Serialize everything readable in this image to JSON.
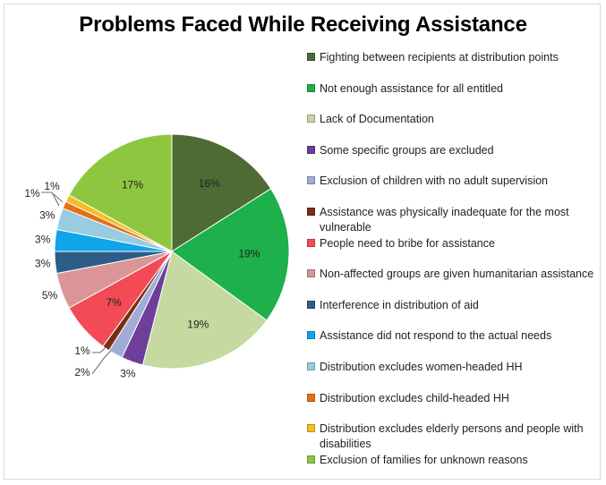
{
  "chart_data": {
    "type": "pie",
    "title": "Problems Faced While Receiving Assistance",
    "slices": [
      {
        "label": "Fighting between recipients at distribution points",
        "value": 16,
        "data_label": "16%",
        "color": "#4e6b33"
      },
      {
        "label": "Not enough assistance for all entitled",
        "value": 19,
        "data_label": "19%",
        "color": "#1db04b"
      },
      {
        "label": "Lack of Documentation",
        "value": 19,
        "data_label": "19%",
        "color": "#c5d9a0"
      },
      {
        "label": "Some specific groups are excluded",
        "value": 3,
        "data_label": "3%",
        "color": "#6e3f9a"
      },
      {
        "label": "Exclusion of children with no adult supervision",
        "value": 2,
        "data_label": "2%",
        "color": "#a3acd6"
      },
      {
        "label": "Assistance was physically inadequate for the most vulnerable",
        "value": 1,
        "data_label": "1%",
        "color": "#7a2e10"
      },
      {
        "label": "People need to bribe for assistance",
        "value": 7,
        "data_label": "7%",
        "color": "#f24b55"
      },
      {
        "label": "Non-affected groups are given humanitarian assistance",
        "value": 5,
        "data_label": "5%",
        "color": "#da9696"
      },
      {
        "label": "Interference in distribution of aid",
        "value": 3,
        "data_label": "3%",
        "color": "#2e5d88"
      },
      {
        "label": "Assistance did not respond to the actual needs",
        "value": 3,
        "data_label": "3%",
        "color": "#10a4e8"
      },
      {
        "label": "Distribution excludes women-headed HH",
        "value": 3,
        "data_label": "3%",
        "color": "#98cce0"
      },
      {
        "label": "Distribution excludes child-headed HH",
        "value": 1,
        "data_label": "1%",
        "color": "#e5701a"
      },
      {
        "label": "Distribution excludes elderly persons and people with disabilities",
        "value": 1,
        "data_label": "1%",
        "color": "#f4bf23"
      },
      {
        "label": "Exclusion of families for unknown reasons",
        "value": 17,
        "data_label": "17%",
        "color": "#8fc63f"
      }
    ],
    "legend_position": "right"
  }
}
